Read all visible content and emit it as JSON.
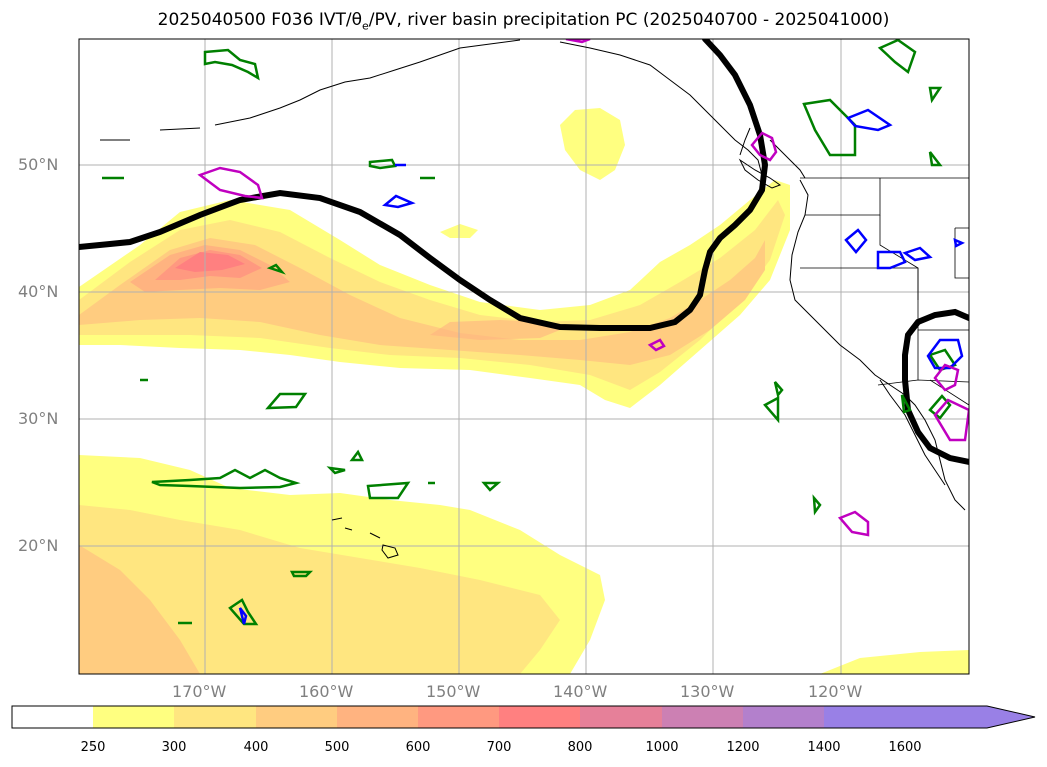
{
  "title_prefix": "2025040500 F036 IVT/",
  "title_theta": "θ",
  "title_theta_sub": "e",
  "title_suffix": "/PV, river basin precipitation PC (2025040700 - 2025041000)",
  "lat_labels": [
    "50°N",
    "40°N",
    "30°N",
    "20°N"
  ],
  "lon_labels": [
    "170°W",
    "160°W",
    "150°W",
    "140°W",
    "130°W",
    "120°W"
  ],
  "colorbar": {
    "ticks": [
      "250",
      "300",
      "400",
      "500",
      "600",
      "700",
      "800",
      "1000",
      "1200",
      "1400",
      "1600"
    ],
    "colors": [
      "#ffff80",
      "#ffe680",
      "#ffcc80",
      "#ffb380",
      "#ff9980",
      "#ff8080",
      "#e68099",
      "#cc80b3",
      "#b380cc",
      "#9980e6"
    ]
  },
  "colors": {
    "ivt_low": "#ffff80",
    "ivt_mid": "#ffcc80",
    "ivt_high": "#ff8080",
    "contour_black": "#000000",
    "contour_green": "#008000",
    "contour_blue": "#0000ff",
    "contour_magenta": "#c000c0",
    "grid": "#b0b0b0"
  }
}
